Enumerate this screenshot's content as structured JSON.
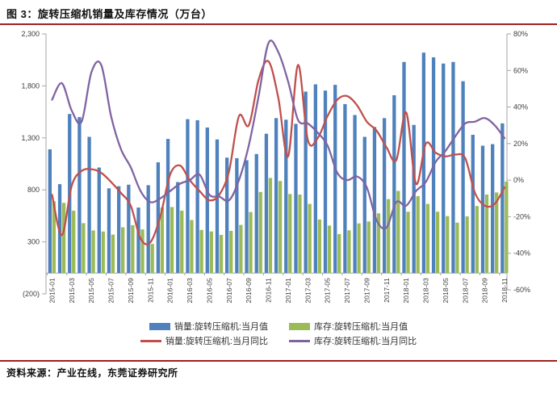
{
  "figure": {
    "title": "图 3：旋转压缩机销量及库存情况（万台）",
    "source": "资料来源：产业在线，东莞证券研究所",
    "accent_color": "#A02020"
  },
  "chart_data": {
    "type": "bar+line-combo",
    "title": "旋转压缩机销量及库存情况（万台）",
    "grid": false,
    "legend_position": "bottom",
    "x_label_every": 2,
    "categories": [
      "2015-01",
      "2015-02",
      "2015-03",
      "2015-04",
      "2015-05",
      "2015-06",
      "2015-07",
      "2015-08",
      "2015-09",
      "2015-10",
      "2015-11",
      "2015-12",
      "2016-01",
      "2016-02",
      "2016-03",
      "2016-04",
      "2016-05",
      "2016-06",
      "2016-07",
      "2016-08",
      "2016-09",
      "2016-10",
      "2016-11",
      "2016-12",
      "2017-01",
      "2017-02",
      "2017-03",
      "2017-04",
      "2017-05",
      "2017-06",
      "2017-07",
      "2017-08",
      "2017-09",
      "2017-10",
      "2017-11",
      "2017-12",
      "2018-01",
      "2018-02",
      "2018-03",
      "2018-04",
      "2018-05",
      "2018-06",
      "2018-07",
      "2018-08",
      "2018-09",
      "2018-10",
      "2018-11"
    ],
    "left_axis": {
      "unit": "万台",
      "min": -200,
      "max": 2300,
      "tick_step": 500,
      "ticks": [
        "2,300",
        "1,800",
        "1,300",
        "800",
        "300",
        "(200)"
      ],
      "tick_values": [
        2300,
        1800,
        1300,
        800,
        300,
        -200
      ]
    },
    "right_axis": {
      "unit": "%",
      "min": -60,
      "max": 80,
      "tick_step": 20,
      "ticks": [
        "80%",
        "60%",
        "40%",
        "20%",
        "0%",
        "-20%",
        "-40%",
        "-60%"
      ],
      "tick_values": [
        80,
        60,
        40,
        20,
        0,
        -20,
        -40,
        -60
      ]
    },
    "series": [
      {
        "name": "销量:旋转压缩机:当月值",
        "type": "bar",
        "axis": "left",
        "color": "#4F81BD",
        "values": [
          1190,
          855,
          1530,
          1500,
          1310,
          1015,
          815,
          835,
          850,
          630,
          845,
          1065,
          1290,
          875,
          1480,
          1470,
          1400,
          1285,
          1110,
          1105,
          1085,
          1145,
          1340,
          1490,
          1475,
          1435,
          1745,
          1815,
          1755,
          1810,
          1625,
          1520,
          1310,
          1405,
          1490,
          1710,
          2030,
          1425,
          2120,
          2075,
          2015,
          2030,
          1845,
          1330,
          1225,
          1240,
          1440
        ]
      },
      {
        "name": "库存:旋转压缩机:当月值",
        "type": "bar",
        "axis": "left",
        "color": "#9BBB59",
        "values": [
          690,
          675,
          600,
          480,
          410,
          400,
          370,
          440,
          460,
          420,
          280,
          630,
          635,
          600,
          510,
          415,
          400,
          367,
          406,
          463,
          587,
          780,
          915,
          885,
          760,
          755,
          665,
          515,
          457,
          375,
          411,
          478,
          496,
          574,
          711,
          790,
          590,
          740,
          665,
          590,
          548,
          485,
          545,
          645,
          755,
          775,
          880
        ]
      },
      {
        "name": "销量:旋转压缩机:当月同比",
        "type": "line",
        "axis": "right",
        "color": "#C0504D",
        "values": [
          -8,
          -30,
          -3,
          5,
          6,
          4,
          -1,
          -7,
          -14,
          -32,
          -34,
          -20,
          3,
          8,
          0,
          -6,
          -11,
          -8,
          5,
          35,
          30,
          55,
          65,
          45,
          13,
          63,
          22,
          23,
          35,
          44,
          46,
          41,
          32,
          27,
          18,
          11,
          37,
          -2,
          20,
          15,
          13,
          14,
          12,
          -7,
          -14,
          -13,
          -4
        ]
      },
      {
        "name": "库存:旋转压缩机:当月同比",
        "type": "line",
        "axis": "right",
        "color": "#8064A2",
        "values": [
          44,
          53,
          38,
          32,
          59,
          63,
          35,
          17,
          7,
          -6,
          -12,
          -10,
          -6,
          -2,
          0,
          3,
          -8,
          -9,
          -11,
          0,
          19,
          46,
          75,
          70,
          54,
          33,
          31,
          26,
          19,
          4,
          0,
          2,
          -4,
          -22,
          -26,
          -12,
          -14,
          -6,
          -1,
          10,
          16,
          24,
          31,
          32,
          34,
          30,
          23
        ]
      }
    ]
  }
}
